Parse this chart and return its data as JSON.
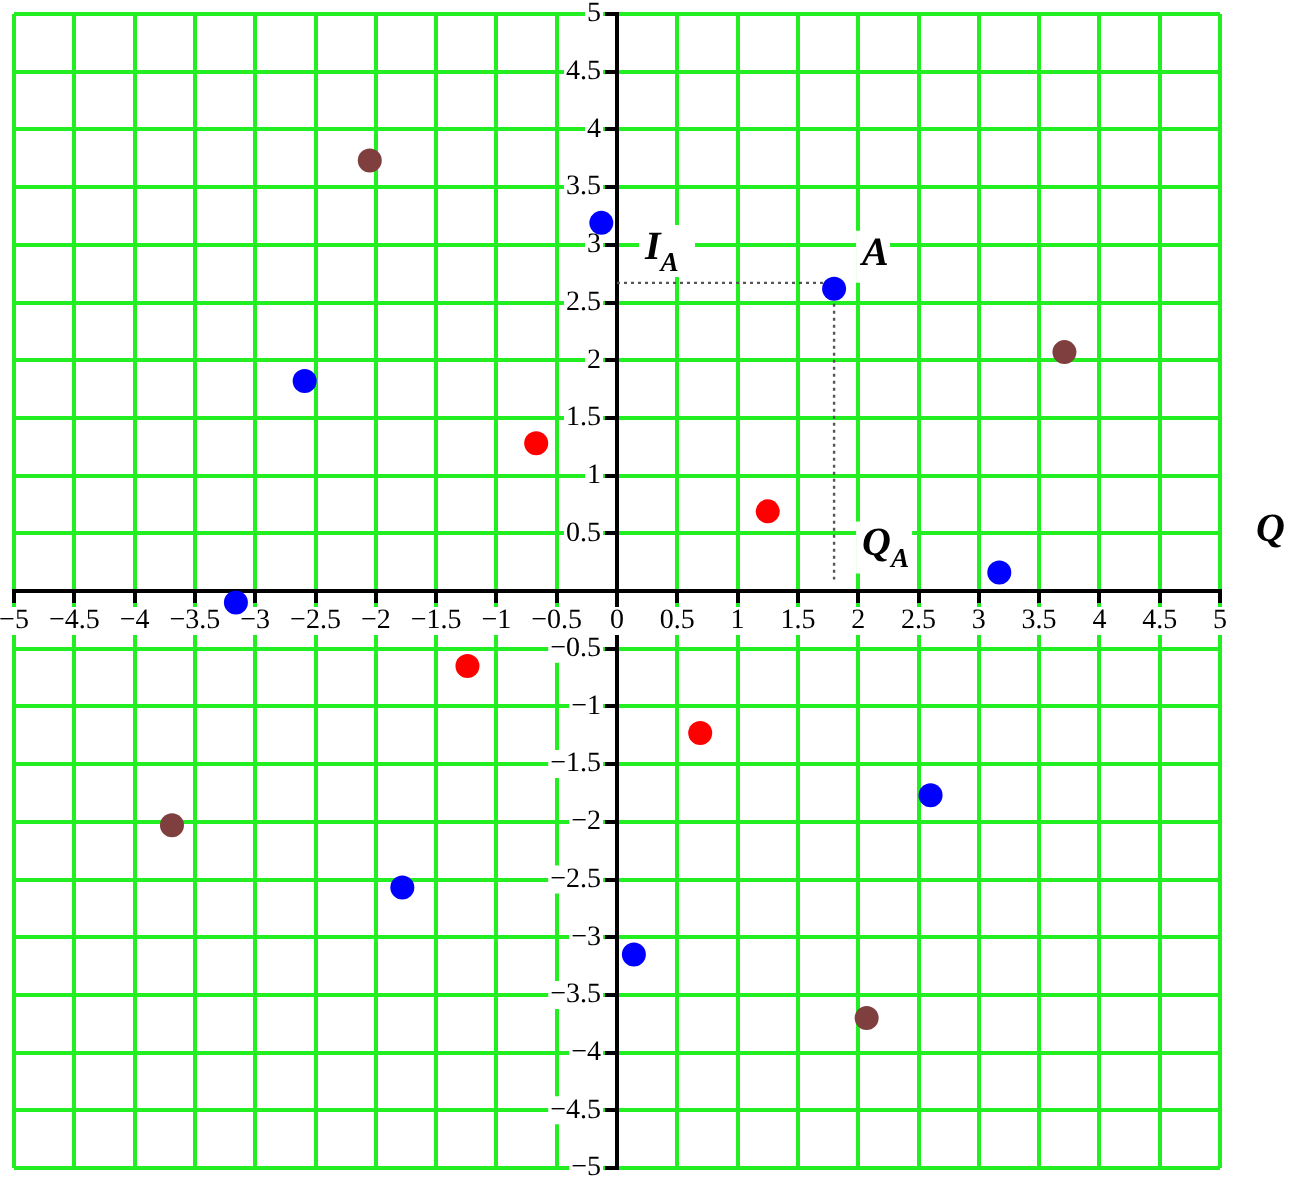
{
  "chart_data": {
    "type": "scatter",
    "xlabel": "Q",
    "xlim": [
      -5,
      5
    ],
    "ylim": [
      -5,
      5
    ],
    "xticks": [
      {
        "value": -5,
        "label": "−5"
      },
      {
        "value": -4.5,
        "label": "−4.5"
      },
      {
        "value": -4,
        "label": "−4"
      },
      {
        "value": -3.5,
        "label": "−3.5"
      },
      {
        "value": -3,
        "label": "−3"
      },
      {
        "value": -2.5,
        "label": "−2.5"
      },
      {
        "value": -2,
        "label": "−2"
      },
      {
        "value": -1.5,
        "label": "−1.5"
      },
      {
        "value": -1,
        "label": "−1"
      },
      {
        "value": -0.5,
        "label": "−0.5"
      },
      0,
      0.5,
      1,
      1.5,
      2,
      2.5,
      3,
      3.5,
      4,
      4.5,
      5
    ],
    "yticks": [
      {
        "value": -5,
        "label": "−5"
      },
      {
        "value": -4.5,
        "label": "−4.5"
      },
      {
        "value": -4,
        "label": "−4"
      },
      {
        "value": -3.5,
        "label": "−3.5"
      },
      {
        "value": -3,
        "label": "−3"
      },
      {
        "value": -2.5,
        "label": "−2.5"
      },
      {
        "value": -2,
        "label": "−2"
      },
      {
        "value": -1.5,
        "label": "−1.5"
      },
      {
        "value": -1,
        "label": "−1"
      },
      {
        "value": -0.5,
        "label": "−0.5"
      },
      {
        "value": 0,
        "label": null
      },
      0.5,
      1,
      1.5,
      2,
      2.5,
      3,
      3.5,
      4,
      4.5,
      5
    ],
    "grid": true,
    "legend": false,
    "marker": "circle",
    "series": [
      {
        "color": "#0000ff",
        "x": [
          -0.13,
          1.8,
          -2.59,
          -3.16,
          3.17,
          2.6,
          -1.78,
          0.14
        ],
        "values": [
          3.19,
          2.62,
          1.82,
          -0.1,
          0.16,
          -1.77,
          -2.57,
          -3.15
        ]
      },
      {
        "color": "#ff0000",
        "x": [
          -0.67,
          1.25,
          -1.24,
          0.69
        ],
        "values": [
          1.28,
          0.69,
          -0.65,
          -1.23
        ]
      },
      {
        "color": "#7f3f3f",
        "x": [
          -2.05,
          3.71,
          -3.69,
          2.07
        ],
        "values": [
          3.73,
          2.07,
          -2.03,
          -3.7
        ]
      },
      {
        "type": "line",
        "color": "#555555",
        "line_style": "dotted",
        "marker": "none",
        "x": [
          0,
          1.8,
          1.8
        ],
        "values": [
          2.67,
          2.67,
          0.1
        ]
      }
    ],
    "annotations": [
      {
        "text": "I$_{A}$",
        "y": 2.67
      },
      {
        "text": "A",
        "x": 1.8,
        "y": 2.62
      },
      {
        "text": "Q$_{A}$",
        "x": 1.8,
        "y": 0.1
      }
    ]
  }
}
